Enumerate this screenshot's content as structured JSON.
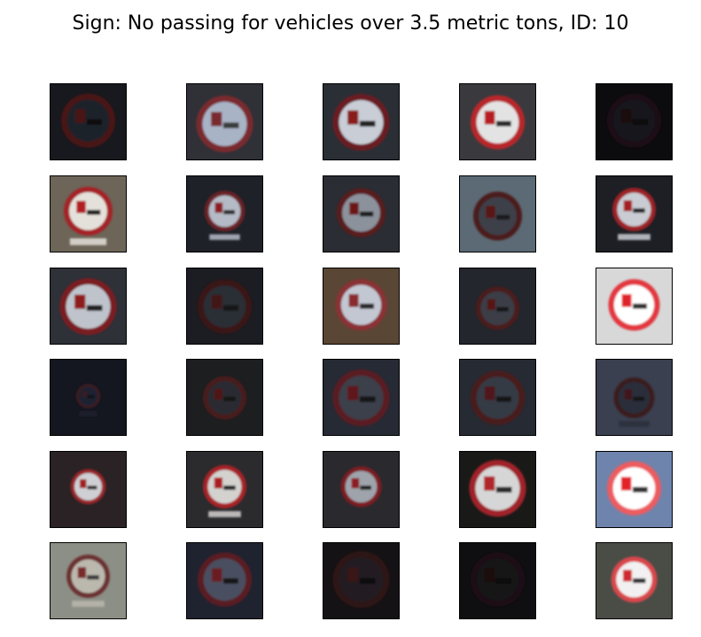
{
  "figure": {
    "title": "Sign: No passing for vehicles over 3.5 metric tons, ID: 10"
  },
  "thumbnails": [
    {
      "row": 0,
      "col": 0,
      "bg": "#17191e",
      "ring": "#4a1619",
      "disc": "#1f2229",
      "red": "#4a1618",
      "truck": "#111111",
      "scale": 1.0,
      "dy": 0,
      "plate": false
    },
    {
      "row": 0,
      "col": 1,
      "bg": "#2f3137",
      "ring": "#7a2a2e",
      "disc": "#a8b3c6",
      "red": "#7a2a2e",
      "truck": "#3a3a3a",
      "scale": 1.05,
      "dy": 4,
      "plate": false
    },
    {
      "row": 0,
      "col": 2,
      "bg": "#2a2f36",
      "ring": "#6b1d20",
      "disc": "#c8cdd6",
      "red": "#8a1a1d",
      "truck": "#202020",
      "scale": 1.05,
      "dy": 2,
      "plate": false
    },
    {
      "row": 0,
      "col": 3,
      "bg": "#3a3a3e",
      "ring": "#b8262b",
      "disc": "#e3e3e3",
      "red": "#b81f24",
      "truck": "#2a2a2a",
      "scale": 1.0,
      "dy": 2,
      "plate": false
    },
    {
      "row": 0,
      "col": 4,
      "bg": "#0c0b0e",
      "ring": "#1a0f12",
      "disc": "#14141a",
      "red": "#1d0e10",
      "truck": "#0a0a0a",
      "scale": 1.0,
      "dy": 0,
      "plate": false
    },
    {
      "row": 1,
      "col": 0,
      "bg": "#6d6558",
      "ring": "#a62228",
      "disc": "#e4e1da",
      "red": "#b21f23",
      "truck": "#222222",
      "scale": 0.9,
      "dy": -2,
      "plate": true
    },
    {
      "row": 1,
      "col": 1,
      "bg": "#1f2128",
      "ring": "#6b2226",
      "disc": "#b4bac6",
      "red": "#8c1d21",
      "truck": "#262626",
      "scale": 0.75,
      "dy": -2,
      "plate": true
    },
    {
      "row": 1,
      "col": 2,
      "bg": "#2a2d33",
      "ring": "#5a1a1d",
      "disc": "#8c929c",
      "red": "#6d1619",
      "truck": "#1a1a1a",
      "scale": 0.9,
      "dy": 0,
      "plate": false
    },
    {
      "row": 1,
      "col": 3,
      "bg": "#5b6a74",
      "ring": "#4c1a1c",
      "disc": "#3d4048",
      "red": "#5a1719",
      "truck": "#1c1c1c",
      "scale": 0.9,
      "dy": 4,
      "plate": false
    },
    {
      "row": 1,
      "col": 4,
      "bg": "#1d1f24",
      "ring": "#9e2428",
      "disc": "#c9ccd3",
      "red": "#a51e22",
      "truck": "#202020",
      "scale": 0.8,
      "dy": -4,
      "plate": true
    },
    {
      "row": 2,
      "col": 0,
      "bg": "#2e3138",
      "ring": "#7a1f22",
      "disc": "#bfc4cc",
      "red": "#8f1c1f",
      "truck": "#222222",
      "scale": 1.05,
      "dy": 2,
      "plate": false
    },
    {
      "row": 2,
      "col": 1,
      "bg": "#1b1d22",
      "ring": "#3a1518",
      "disc": "#2b2e36",
      "red": "#431416",
      "truck": "#141414",
      "scale": 1.0,
      "dy": 2,
      "plate": false
    },
    {
      "row": 2,
      "col": 2,
      "bg": "#5a4634",
      "ring": "#8a3035",
      "disc": "#c2c7d2",
      "red": "#8a2a2f",
      "truck": "#2c2c2c",
      "scale": 0.95,
      "dy": 0,
      "plate": false
    },
    {
      "row": 2,
      "col": 3,
      "bg": "#23262c",
      "ring": "#4b1a1d",
      "disc": "#3a3e46",
      "red": "#561619",
      "truck": "#171717",
      "scale": 0.8,
      "dy": 4,
      "plate": false
    },
    {
      "row": 2,
      "col": 4,
      "bg": "#d8d8d8",
      "ring": "#e3393f",
      "disc": "#ffffff",
      "red": "#e2232a",
      "truck": "#333333",
      "scale": 0.95,
      "dy": 0,
      "plate": false
    },
    {
      "row": 3,
      "col": 0,
      "bg": "#141620",
      "ring": "#3d1a22",
      "disc": "#1c2030",
      "red": "#3a1a20",
      "truck": "#101010",
      "scale": 0.45,
      "dy": 0,
      "plate": true
    },
    {
      "row": 3,
      "col": 1,
      "bg": "#1d1e20",
      "ring": "#4a1a1c",
      "disc": "#2a2c30",
      "red": "#4f1618",
      "truck": "#121212",
      "scale": 0.8,
      "dy": 2,
      "plate": false
    },
    {
      "row": 3,
      "col": 2,
      "bg": "#262a35",
      "ring": "#5a1c20",
      "disc": "#3a3f4b",
      "red": "#5f181b",
      "truck": "#161616",
      "scale": 1.05,
      "dy": 2,
      "plate": false
    },
    {
      "row": 3,
      "col": 3,
      "bg": "#262a33",
      "ring": "#4a1a1e",
      "disc": "#353a44",
      "red": "#4f171a",
      "truck": "#141414",
      "scale": 1.0,
      "dy": 2,
      "plate": false
    },
    {
      "row": 3,
      "col": 4,
      "bg": "#3a4050",
      "ring": "#3a1a1f",
      "disc": "#2a2e3a",
      "red": "#3f171b",
      "truck": "#141414",
      "scale": 0.75,
      "dy": 2,
      "plate": true
    },
    {
      "row": 4,
      "col": 0,
      "bg": "#2a2224",
      "ring": "#9a2529",
      "disc": "#cfd0d4",
      "red": "#a21f23",
      "truck": "#262626",
      "scale": 0.65,
      "dy": -2,
      "plate": false
    },
    {
      "row": 4,
      "col": 1,
      "bg": "#2b2b2e",
      "ring": "#a82428",
      "disc": "#d3d2cf",
      "red": "#ad1f23",
      "truck": "#262626",
      "scale": 0.8,
      "dy": -2,
      "plate": true
    },
    {
      "row": 4,
      "col": 2,
      "bg": "#2a2a2e",
      "ring": "#7d1e22",
      "disc": "#9fa4ac",
      "red": "#8e1c20",
      "truck": "#1f1f1f",
      "scale": 0.75,
      "dy": -2,
      "plate": false
    },
    {
      "row": 4,
      "col": 3,
      "bg": "#191a17",
      "ring": "#a12429",
      "disc": "#d6d6d6",
      "red": "#b0252a",
      "truck": "#2a2a2a",
      "scale": 1.05,
      "dy": 0,
      "plate": false
    },
    {
      "row": 4,
      "col": 4,
      "bg": "#6e84ad",
      "ring": "#ec5b60",
      "disc": "#ffffff",
      "red": "#e4222a",
      "truck": "#333333",
      "scale": 1.0,
      "dy": 0,
      "plate": false
    },
    {
      "row": 5,
      "col": 0,
      "bg": "#8c8f86",
      "ring": "#6c3030",
      "disc": "#bbb8ae",
      "red": "#7a2b2b",
      "truck": "#3a3a3a",
      "scale": 0.8,
      "dy": -4,
      "plate": true
    },
    {
      "row": 5,
      "col": 1,
      "bg": "#1f2330",
      "ring": "#5a1d24",
      "disc": "#4a5060",
      "red": "#6a1b22",
      "truck": "#181818",
      "scale": 1.0,
      "dy": 0,
      "plate": false
    },
    {
      "row": 5,
      "col": 2,
      "bg": "#141214",
      "ring": "#2d1416",
      "disc": "#221f24",
      "red": "#3a1417",
      "truck": "#0e0e0e",
      "scale": 1.05,
      "dy": 0,
      "plate": false
    },
    {
      "row": 5,
      "col": 3,
      "bg": "#0f0e11",
      "ring": "#1c1013",
      "disc": "#141318",
      "red": "#1c0e10",
      "truck": "#0b0b0b",
      "scale": 1.0,
      "dy": 0,
      "plate": false
    },
    {
      "row": 5,
      "col": 4,
      "bg": "#4a4d46",
      "ring": "#d9464c",
      "disc": "#f2f0f0",
      "red": "#cf2a30",
      "truck": "#2e2e2e",
      "scale": 0.85,
      "dy": 0,
      "plate": false
    }
  ]
}
